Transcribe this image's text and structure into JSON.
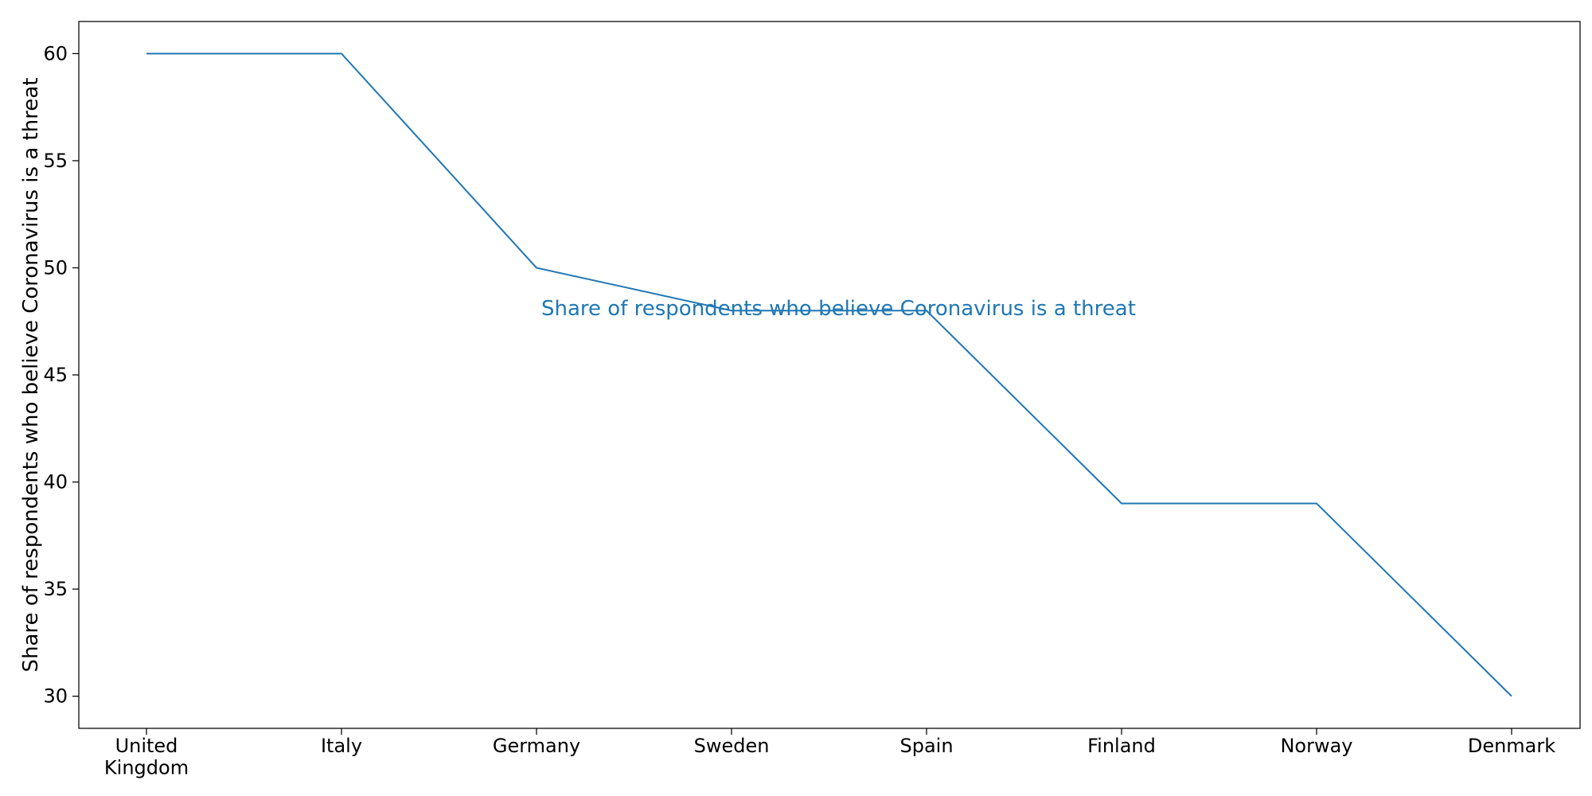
{
  "chart_data": {
    "type": "line",
    "categories": [
      [
        "United",
        "Kingdom"
      ],
      [
        "Italy"
      ],
      [
        "Germany"
      ],
      [
        "Sweden"
      ],
      [
        "Spain"
      ],
      [
        "Finland"
      ],
      [
        "Norway"
      ],
      [
        "Denmark"
      ]
    ],
    "series": [
      {
        "name": "Share of respondents who believe Coronavirus is a threat",
        "values": [
          60,
          60,
          50,
          48,
          48,
          39,
          39,
          30
        ]
      }
    ],
    "title": "",
    "xlabel": "",
    "ylabel": "Share of respondents who believe Coronavirus is a threat",
    "ylim": [
      28.5,
      61.5
    ],
    "yticks": [
      30,
      35,
      40,
      45,
      50,
      55,
      60
    ],
    "grid": false,
    "legend": "none",
    "colors": {
      "line": "#1f77b4",
      "axis": "#000000"
    }
  }
}
